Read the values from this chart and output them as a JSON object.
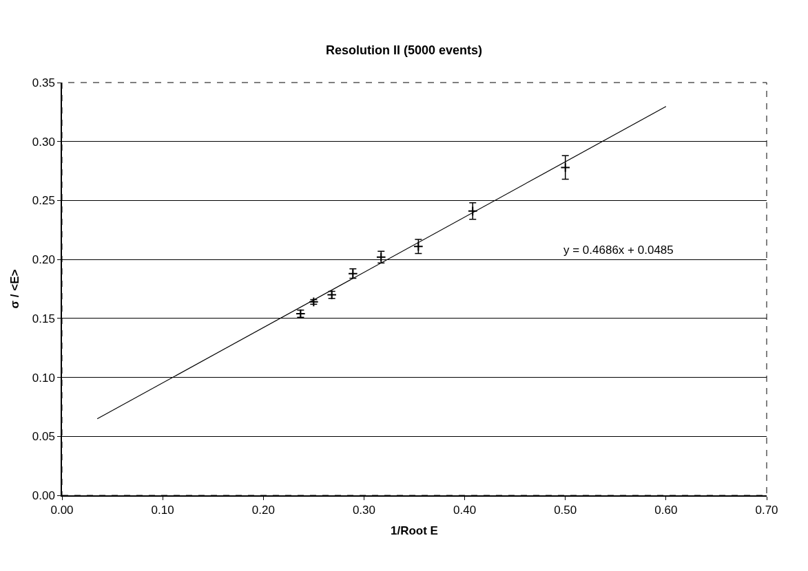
{
  "chart_data": {
    "type": "scatter",
    "title": "Resolution II (5000 events)",
    "xlabel": "1/Root E",
    "ylabel": "σ / <E>",
    "series": [
      {
        "color": "#000000",
        "marker": "cross",
        "x": [
          0.237,
          0.25,
          0.268,
          0.289,
          0.317,
          0.354,
          0.408,
          0.5
        ],
        "values": [
          0.154,
          0.164,
          0.17,
          0.188,
          0.202,
          0.211,
          0.241,
          0.278
        ],
        "errors": [
          0.003,
          0.002,
          0.003,
          0.004,
          0.005,
          0.006,
          0.007,
          0.01
        ]
      },
      {
        "type": "line",
        "color": "#000000",
        "line_style": "solid",
        "x": [
          0.035,
          0.6
        ],
        "values": [
          0.0649,
          0.3297
        ]
      }
    ],
    "annotations": [
      "y = 0.4686x + 0.0485"
    ],
    "xlim": [
      0,
      0.7
    ],
    "xticks": [
      {
        "value": 0,
        "label": "0.00"
      },
      {
        "value": 0.1,
        "label": "0.10"
      },
      {
        "value": 0.2,
        "label": "0.20"
      },
      {
        "value": 0.3,
        "label": "0.30"
      },
      {
        "value": 0.4,
        "label": "0.40"
      },
      {
        "value": 0.5,
        "label": "0.50"
      },
      {
        "value": 0.6,
        "label": "0.60"
      },
      {
        "value": 0.7,
        "label": "0.70"
      }
    ],
    "ylim": [
      0,
      0.35
    ],
    "yticks": [
      {
        "value": 0,
        "label": "0.00"
      },
      {
        "value": 0.05,
        "label": "0.05"
      },
      {
        "value": 0.1,
        "label": "0.10"
      },
      {
        "value": 0.15,
        "label": "0.15"
      },
      {
        "value": 0.2,
        "label": "0.20"
      },
      {
        "value": 0.25,
        "label": "0.25"
      },
      {
        "value": 0.3,
        "label": "0.30"
      },
      {
        "value": 0.35,
        "label": "0.35"
      }
    ],
    "grid": "y"
  }
}
